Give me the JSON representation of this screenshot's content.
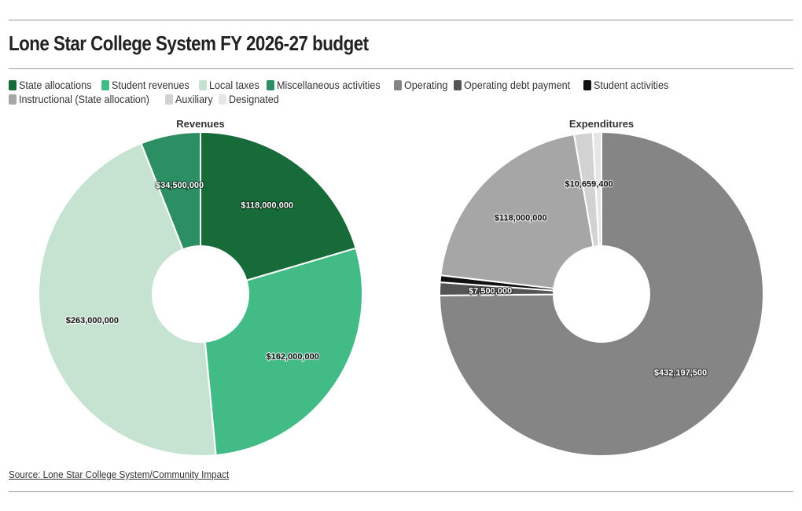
{
  "title": "Lone Star College System FY 2026-27 budget",
  "source": "Source: Lone Star College System/Community Impact",
  "legend": [
    {
      "label": "State allocations",
      "color": "#166b38"
    },
    {
      "label": "Student revenues",
      "color": "#43bb87"
    },
    {
      "label": "Local taxes",
      "color": "#c6e3d1"
    },
    {
      "label": "Miscellaneous activities",
      "color": "#2c8f64"
    },
    {
      "label": "Operating",
      "color": "#858585"
    },
    {
      "label": "Operating debt payment",
      "color": "#555555"
    },
    {
      "label": "Student activities",
      "color": "#111111"
    },
    {
      "label": "Instructional (State allocation)",
      "color": "#a6a6a6"
    },
    {
      "label": "Auxiliary",
      "color": "#d2d2d2"
    },
    {
      "label": "Designated",
      "color": "#e6e6e6"
    }
  ],
  "chart_data": [
    {
      "type": "pie",
      "title": "Revenues",
      "donut": true,
      "labels": [
        "State allocations",
        "Student revenues",
        "Local taxes",
        "Miscellaneous activities"
      ],
      "values": [
        118000000,
        162000000,
        263000000,
        34500000
      ],
      "data_labels": [
        "$118,000,000",
        "$162,000,000",
        "$263,000,000",
        "$34,500,000"
      ],
      "colors": [
        "#166b38",
        "#43bb87",
        "#c6e3d1",
        "#2c8f64"
      ],
      "label_colors": [
        "#ffffff",
        "#111111",
        "#111111",
        "#ffffff"
      ],
      "legend": "top-left"
    },
    {
      "type": "pie",
      "title": "Expenditures",
      "donut": true,
      "labels": [
        "Operating",
        "Operating debt payment",
        "Student activities",
        "Instructional (State allocation)",
        "Auxiliary",
        "Designated"
      ],
      "values": [
        432197500,
        7500000,
        4000000,
        118000000,
        10659400,
        5000000
      ],
      "data_labels": [
        "$432,197,500",
        "$7,500,000",
        "",
        "$118,000,000",
        "$10,659,400",
        ""
      ],
      "colors": [
        "#858585",
        "#555555",
        "#111111",
        "#a6a6a6",
        "#d2d2d2",
        "#e6e6e6"
      ],
      "label_colors": [
        "#ffffff",
        "#ffffff",
        "#ffffff",
        "#111111",
        "#111111",
        "#111111"
      ],
      "legend": "top-left"
    }
  ]
}
